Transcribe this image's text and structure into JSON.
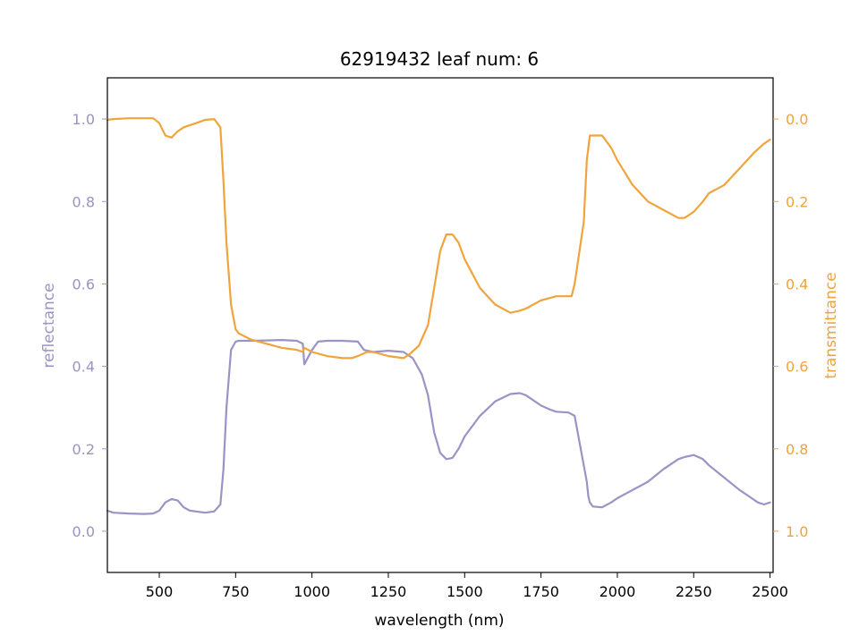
{
  "colors": {
    "reflectance": "#9a94c5",
    "transmittance": "#f0a43c",
    "axis": "#000000",
    "background": "#ffffff"
  },
  "chart_data": {
    "type": "line",
    "title": "62919432 leaf num: 6",
    "xlabel": "wavelength (nm)",
    "ylabel_left": "reflectance",
    "ylabel_right": "transmittance",
    "xlim": [
      330,
      2510
    ],
    "ylim_left": [
      -0.1,
      1.1
    ],
    "ylim_right": [
      1.1,
      -0.1
    ],
    "right_axis_inverted": true,
    "grid": false,
    "x_ticks": [
      500,
      750,
      1000,
      1250,
      1500,
      1750,
      2000,
      2250,
      2500
    ],
    "left_ticks": [
      0.0,
      0.2,
      0.4,
      0.6,
      0.8,
      1.0
    ],
    "right_ticks": [
      0.0,
      0.2,
      0.4,
      0.6,
      0.8,
      1.0
    ],
    "series": [
      {
        "name": "reflectance",
        "axis": "left",
        "x": [
          330,
          350,
          400,
          450,
          480,
          500,
          520,
          540,
          560,
          580,
          600,
          650,
          680,
          700,
          710,
          720,
          735,
          750,
          760,
          800,
          850,
          900,
          950,
          970,
          975,
          1000,
          1020,
          1050,
          1100,
          1150,
          1170,
          1200,
          1250,
          1300,
          1330,
          1360,
          1380,
          1400,
          1420,
          1440,
          1460,
          1480,
          1500,
          1550,
          1600,
          1650,
          1680,
          1700,
          1750,
          1780,
          1800,
          1840,
          1860,
          1880,
          1900,
          1905,
          1910,
          1920,
          1950,
          1980,
          2000,
          2050,
          2100,
          2150,
          2200,
          2220,
          2250,
          2280,
          2300,
          2350,
          2400,
          2420,
          2440,
          2460,
          2480,
          2500
        ],
        "y": [
          0.05,
          0.045,
          0.043,
          0.042,
          0.043,
          0.05,
          0.07,
          0.078,
          0.075,
          0.058,
          0.05,
          0.045,
          0.048,
          0.065,
          0.15,
          0.3,
          0.44,
          0.46,
          0.462,
          0.462,
          0.463,
          0.464,
          0.462,
          0.455,
          0.405,
          0.44,
          0.46,
          0.462,
          0.462,
          0.46,
          0.44,
          0.435,
          0.438,
          0.435,
          0.42,
          0.38,
          0.33,
          0.24,
          0.19,
          0.175,
          0.178,
          0.2,
          0.23,
          0.28,
          0.315,
          0.333,
          0.335,
          0.33,
          0.305,
          0.295,
          0.29,
          0.288,
          0.28,
          0.2,
          0.12,
          0.085,
          0.07,
          0.06,
          0.058,
          0.07,
          0.08,
          0.1,
          0.12,
          0.15,
          0.175,
          0.18,
          0.185,
          0.175,
          0.16,
          0.13,
          0.1,
          0.09,
          0.08,
          0.07,
          0.065,
          0.07
        ]
      },
      {
        "name": "transmittance",
        "axis": "right",
        "x": [
          330,
          350,
          400,
          450,
          480,
          500,
          520,
          540,
          560,
          580,
          620,
          650,
          680,
          700,
          710,
          720,
          735,
          750,
          760,
          800,
          850,
          900,
          950,
          970,
          975,
          1000,
          1050,
          1100,
          1130,
          1150,
          1180,
          1200,
          1250,
          1300,
          1320,
          1350,
          1380,
          1400,
          1420,
          1440,
          1460,
          1480,
          1500,
          1550,
          1600,
          1650,
          1680,
          1700,
          1750,
          1800,
          1850,
          1860,
          1880,
          1890,
          1900,
          1910,
          1920,
          1950,
          1980,
          2000,
          2050,
          2100,
          2150,
          2200,
          2220,
          2250,
          2280,
          2300,
          2350,
          2400,
          2450,
          2480,
          2500
        ],
        "y": [
          0.002,
          0.0,
          -0.002,
          -0.002,
          -0.002,
          0.01,
          0.04,
          0.045,
          0.03,
          0.02,
          0.01,
          0.002,
          0.0,
          0.02,
          0.15,
          0.3,
          0.45,
          0.51,
          0.52,
          0.535,
          0.545,
          0.555,
          0.56,
          0.565,
          0.555,
          0.565,
          0.575,
          0.58,
          0.58,
          0.575,
          0.565,
          0.565,
          0.575,
          0.58,
          0.57,
          0.55,
          0.5,
          0.41,
          0.32,
          0.28,
          0.28,
          0.3,
          0.34,
          0.41,
          0.45,
          0.47,
          0.465,
          0.46,
          0.44,
          0.43,
          0.43,
          0.4,
          0.3,
          0.25,
          0.1,
          0.04,
          0.04,
          0.04,
          0.07,
          0.1,
          0.16,
          0.2,
          0.22,
          0.24,
          0.24,
          0.225,
          0.2,
          0.18,
          0.16,
          0.12,
          0.08,
          0.06,
          0.05
        ]
      }
    ]
  }
}
